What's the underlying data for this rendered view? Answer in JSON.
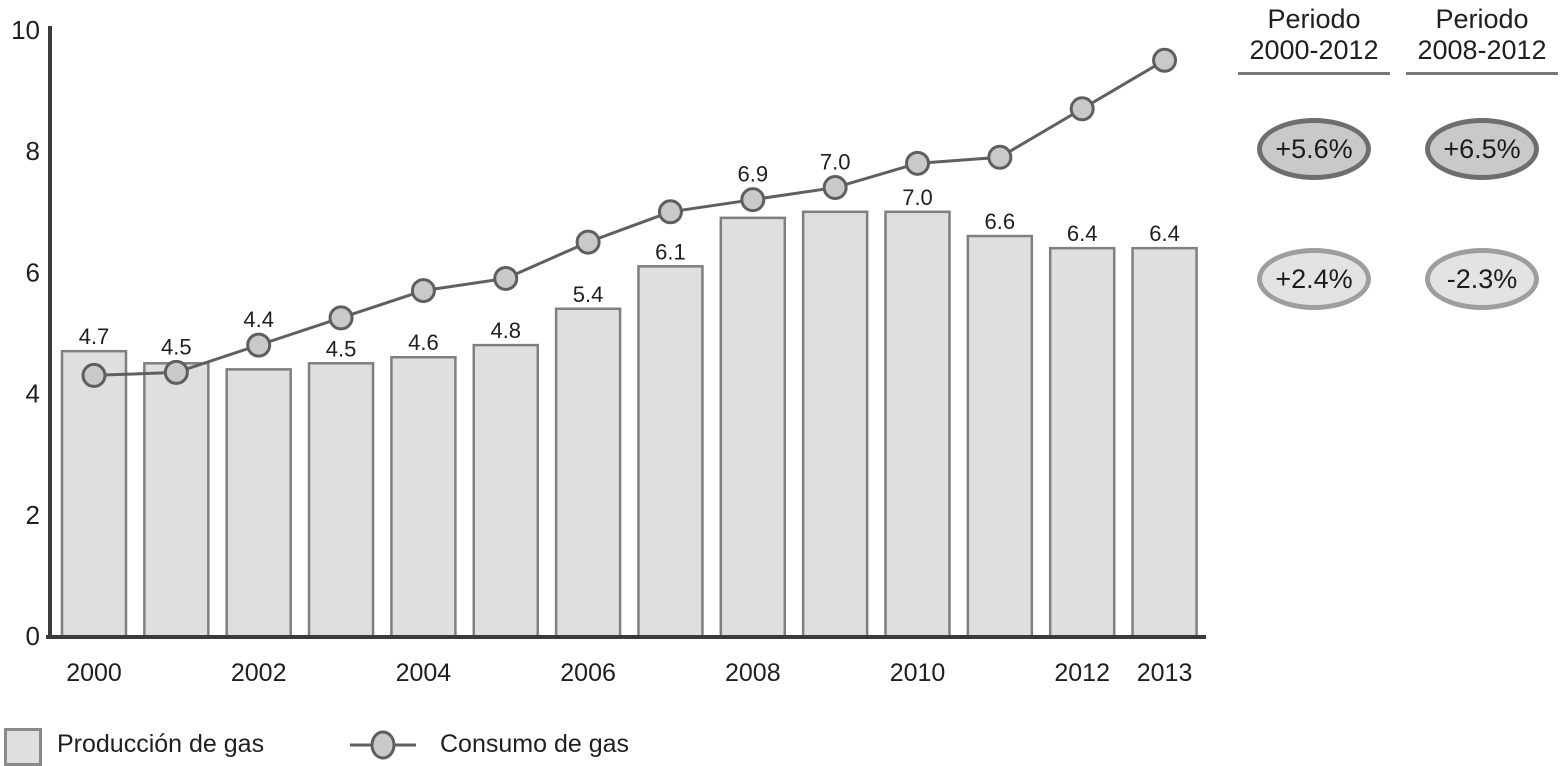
{
  "chart_data": {
    "type": "bar+line",
    "categories": [
      2000,
      2001,
      2002,
      2003,
      2004,
      2005,
      2006,
      2007,
      2008,
      2009,
      2010,
      2011,
      2012,
      2013
    ],
    "series": [
      {
        "name": "Producción de gas",
        "kind": "bar",
        "values": [
          4.7,
          4.5,
          4.4,
          4.5,
          4.6,
          4.8,
          5.4,
          6.1,
          6.9,
          7.0,
          7.0,
          6.6,
          6.4,
          6.4
        ],
        "data_labels": [
          "4.7",
          "4.5",
          "4.4",
          "4.5",
          "4.6",
          "4.8",
          "5.4",
          "6.1",
          "6.9",
          "7.0",
          "7.0",
          "6.6",
          "6.4",
          "6.4"
        ]
      },
      {
        "name": "Consumo de gas",
        "kind": "line",
        "values": [
          4.3,
          4.35,
          4.8,
          5.25,
          5.7,
          5.9,
          6.5,
          7.0,
          7.2,
          7.4,
          7.8,
          7.9,
          8.7,
          9.5
        ],
        "data_labels": []
      }
    ],
    "ylim": [
      0,
      10
    ],
    "yticks": [
      0,
      2,
      4,
      6,
      8,
      10
    ],
    "xticks": [
      {
        "index": 0,
        "label": "2000"
      },
      {
        "index": 2,
        "label": "2002"
      },
      {
        "index": 4,
        "label": "2004"
      },
      {
        "index": 6,
        "label": "2006"
      },
      {
        "index": 8,
        "label": "2008"
      },
      {
        "index": 10,
        "label": "2010"
      },
      {
        "index": 12,
        "label": "2012"
      },
      {
        "index": 13,
        "label": "2013"
      }
    ],
    "grid": false,
    "legend_position": "bottom-left"
  },
  "annotations": {
    "columns": [
      {
        "title_line1": "Periodo",
        "title_line2": "2000-2012",
        "ovals": [
          {
            "text": "+5.6%",
            "style": "dark"
          },
          {
            "text": "+2.4%",
            "style": "light"
          }
        ]
      },
      {
        "title_line1": "Periodo",
        "title_line2": "2008-2012",
        "ovals": [
          {
            "text": "+6.5%",
            "style": "dark"
          },
          {
            "text": "-2.3%",
            "style": "light"
          }
        ]
      }
    ]
  },
  "legend": {
    "items": [
      {
        "label": "Producción de gas",
        "symbol": "bar-swatch"
      },
      {
        "label": "Consumo de gas",
        "symbol": "line-marker"
      }
    ]
  },
  "colors": {
    "bar_fill": "#dfdfdf",
    "bar_stroke": "#7f7f7f",
    "line": "#606060",
    "marker_fill": "#c9c9c9",
    "marker_stroke": "#5e5e5e",
    "axis": "#3a3a3a",
    "text": "#1f1f1f",
    "oval_dark_fill": "#c9c9c9",
    "oval_dark_stroke": "#6e6e6e",
    "oval_light_fill": "#e3e3e3",
    "oval_light_stroke": "#9e9e9e"
  }
}
